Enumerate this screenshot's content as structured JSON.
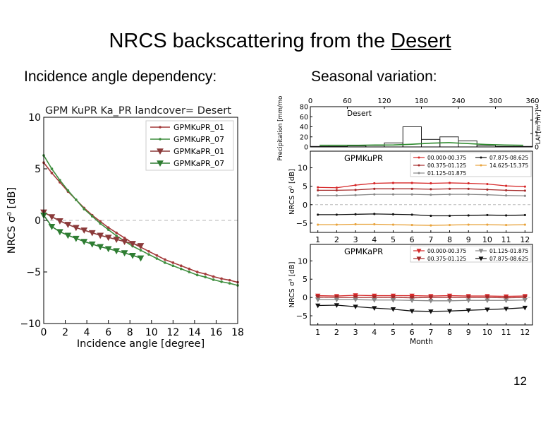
{
  "slide": {
    "title_prefix": "NRCS backscattering from the ",
    "title_underlined": "Desert",
    "left_heading": "Incidence angle dependency:",
    "right_heading": "Seasonal variation:",
    "page_number": "12"
  },
  "chart_data": [
    {
      "id": "incidence",
      "type": "line",
      "title": "GPM KuPR Ka_PR  landcover= Desert",
      "xlabel": "Incidence angle [degree]",
      "ylabel": "NRCS σ⁰ [dB]",
      "xlim": [
        0,
        18
      ],
      "ylim": [
        -10,
        10
      ],
      "xticks": [
        0,
        2,
        4,
        6,
        8,
        10,
        12,
        14,
        16,
        18
      ],
      "yticks": [
        -10,
        -5,
        0,
        5,
        10
      ],
      "xtick_labels": [
        "0",
        "2",
        "4",
        "6",
        "8",
        "10",
        "12",
        "14",
        "16",
        "18"
      ],
      "ytick_labels": [
        "−10",
        "−5",
        "0",
        "5",
        "10"
      ],
      "reference_line": 0,
      "legend_position": "upper right",
      "series": [
        {
          "name": "GPMKuPR_01",
          "color": "#a33a3a",
          "marker": "dot",
          "x": [
            0,
            0.75,
            1.5,
            2.25,
            3,
            3.75,
            4.5,
            5.25,
            6,
            6.75,
            7.5,
            8.25,
            9,
            9.75,
            10.5,
            11.25,
            12,
            12.75,
            13.5,
            14.25,
            15,
            15.75,
            16.5,
            17.25,
            18
          ],
          "y": [
            5.6,
            4.6,
            3.7,
            2.8,
            2.0,
            1.2,
            0.5,
            -0.1,
            -0.7,
            -1.2,
            -1.7,
            -2.2,
            -2.6,
            -3.0,
            -3.4,
            -3.8,
            -4.1,
            -4.4,
            -4.7,
            -5.0,
            -5.2,
            -5.45,
            -5.65,
            -5.8,
            -6.0
          ]
        },
        {
          "name": "GPMKuPR_07",
          "color": "#3e8e3e",
          "marker": "dot",
          "x": [
            0,
            0.75,
            1.5,
            2.25,
            3,
            3.75,
            4.5,
            5.25,
            6,
            6.75,
            7.5,
            8.25,
            9,
            9.75,
            10.5,
            11.25,
            12,
            12.75,
            13.5,
            14.25,
            15,
            15.75,
            16.5,
            17.25,
            18
          ],
          "y": [
            6.3,
            5.0,
            3.9,
            2.9,
            2.0,
            1.1,
            0.4,
            -0.3,
            -0.9,
            -1.5,
            -2.0,
            -2.5,
            -2.9,
            -3.3,
            -3.7,
            -4.1,
            -4.4,
            -4.7,
            -5.0,
            -5.3,
            -5.5,
            -5.75,
            -5.95,
            -6.1,
            -6.3
          ]
        },
        {
          "name": "GPMKaPR_01",
          "color": "#8b3a3a",
          "marker": "triangle",
          "x": [
            0,
            0.75,
            1.5,
            2.25,
            3,
            3.75,
            4.5,
            5.25,
            6,
            6.75,
            7.5,
            8.25,
            9
          ],
          "y": [
            0.8,
            0.35,
            -0.05,
            -0.4,
            -0.7,
            -0.95,
            -1.2,
            -1.45,
            -1.65,
            -1.85,
            -2.05,
            -2.25,
            -2.45
          ]
        },
        {
          "name": "GPMKaPR_07",
          "color": "#2e7d32",
          "marker": "triangle",
          "x": [
            0,
            0.75,
            1.5,
            2.25,
            3,
            3.75,
            4.5,
            5.25,
            6,
            6.75,
            7.5,
            8.25,
            9
          ],
          "y": [
            0.5,
            -0.6,
            -1.1,
            -1.45,
            -1.75,
            -2.05,
            -2.3,
            -2.55,
            -2.75,
            -2.95,
            -3.15,
            -3.4,
            -3.65
          ]
        }
      ]
    },
    {
      "id": "precip",
      "type": "bar",
      "title": "Desert",
      "xlabel": "",
      "ylabel": "Precipitation [mm/mo]",
      "ylabel_right": "LAI [m²/m²]",
      "top_xticks": [
        0,
        60,
        120,
        180,
        240,
        300,
        360
      ],
      "top_xtick_labels": [
        "0",
        "60",
        "120",
        "180",
        "240",
        "300",
        "360"
      ],
      "ylim": [
        0,
        80
      ],
      "yticks": [
        0,
        20,
        40,
        60,
        80
      ],
      "ytick_labels": [
        "0",
        "20",
        "40",
        "60",
        "80"
      ],
      "ylim_right": [
        0,
        3
      ],
      "yticks_right": [
        0,
        1,
        2,
        3
      ],
      "ytick_labels_right": [
        "0",
        "1",
        "2",
        "3"
      ],
      "months": [
        1,
        2,
        3,
        4,
        5,
        6,
        7,
        8,
        9,
        10,
        11,
        12
      ],
      "values": [
        1,
        1,
        2,
        3,
        8,
        40,
        15,
        20,
        12,
        3,
        1,
        1
      ],
      "lai": [
        0.12,
        0.12,
        0.12,
        0.14,
        0.15,
        0.2,
        0.28,
        0.32,
        0.25,
        0.18,
        0.14,
        0.12
      ]
    },
    {
      "id": "ku_seasonal",
      "type": "line",
      "title": "GPMKuPR",
      "xlabel": "",
      "ylabel": "NRCS σ⁰ [dB]",
      "xlim": [
        0.6,
        12.4
      ],
      "ylim": [
        -7.5,
        14.5
      ],
      "yticks": [
        -5,
        0,
        5,
        10
      ],
      "ytick_labels": [
        "−5",
        "0",
        "5",
        "10"
      ],
      "xticks": [
        1,
        2,
        3,
        4,
        5,
        6,
        7,
        8,
        9,
        10,
        11,
        12
      ],
      "xtick_labels": [
        "1",
        "2",
        "3",
        "4",
        "5",
        "6",
        "7",
        "8",
        "9",
        "10",
        "11",
        "12"
      ],
      "reference_line": 0,
      "series": [
        {
          "name": "00.000-00.375",
          "color": "#d62728",
          "marker": "dot",
          "x": [
            1,
            2,
            3,
            4,
            5,
            6,
            7,
            8,
            9,
            10,
            11,
            12
          ],
          "y": [
            4.7,
            4.6,
            5.3,
            5.8,
            5.9,
            5.9,
            5.8,
            5.9,
            5.8,
            5.6,
            5.1,
            4.9
          ]
        },
        {
          "name": "00.375-01.125",
          "color": "#a52a2a",
          "marker": "dot",
          "x": [
            1,
            2,
            3,
            4,
            5,
            6,
            7,
            8,
            9,
            10,
            11,
            12
          ],
          "y": [
            3.9,
            3.9,
            4.0,
            4.3,
            4.3,
            4.3,
            4.2,
            4.3,
            4.3,
            4.1,
            3.9,
            3.8
          ]
        },
        {
          "name": "01.125-01.875",
          "color": "#888888",
          "marker": "dot",
          "x": [
            1,
            2,
            3,
            4,
            5,
            6,
            7,
            8,
            9,
            10,
            11,
            12
          ],
          "y": [
            2.5,
            2.5,
            2.6,
            2.8,
            2.8,
            2.8,
            2.7,
            2.8,
            2.8,
            2.7,
            2.5,
            2.4
          ]
        },
        {
          "name": "07.875-08.625",
          "color": "#111111",
          "marker": "dot",
          "x": [
            1,
            2,
            3,
            4,
            5,
            6,
            7,
            8,
            9,
            10,
            11,
            12
          ],
          "y": [
            -2.7,
            -2.7,
            -2.6,
            -2.5,
            -2.6,
            -2.7,
            -3.0,
            -3.0,
            -2.9,
            -2.8,
            -2.9,
            -2.8
          ]
        },
        {
          "name": "14.625-15.375",
          "color": "#e8a33c",
          "marker": "dot",
          "x": [
            1,
            2,
            3,
            4,
            5,
            6,
            7,
            8,
            9,
            10,
            11,
            12
          ],
          "y": [
            -5.4,
            -5.4,
            -5.3,
            -5.3,
            -5.4,
            -5.5,
            -5.6,
            -5.5,
            -5.4,
            -5.4,
            -5.5,
            -5.4
          ]
        }
      ]
    },
    {
      "id": "ka_seasonal",
      "type": "line",
      "title": "GPMKaPR",
      "xlabel": "Month",
      "ylabel": "NRCS σ⁰ [dB]",
      "xlim": [
        0.6,
        12.4
      ],
      "ylim": [
        -7.5,
        14.5
      ],
      "yticks": [
        -5,
        0,
        5,
        10
      ],
      "ytick_labels": [
        "−5",
        "0",
        "5",
        "10"
      ],
      "xticks": [
        1,
        2,
        3,
        4,
        5,
        6,
        7,
        8,
        9,
        10,
        11,
        12
      ],
      "xtick_labels": [
        "1",
        "2",
        "3",
        "4",
        "5",
        "6",
        "7",
        "8",
        "9",
        "10",
        "11",
        "12"
      ],
      "reference_line": 0,
      "series": [
        {
          "name": "00.000-00.375",
          "color": "#d62728",
          "marker": "triangle",
          "x": [
            1,
            2,
            3,
            4,
            5,
            6,
            7,
            8,
            9,
            10,
            11,
            12
          ],
          "y": [
            0.5,
            0.4,
            0.6,
            0.5,
            0.5,
            0.5,
            0.4,
            0.5,
            0.4,
            0.4,
            0.3,
            0.4
          ]
        },
        {
          "name": "00.375-01.125",
          "color": "#a52a2a",
          "marker": "triangle",
          "x": [
            1,
            2,
            3,
            4,
            5,
            6,
            7,
            8,
            9,
            10,
            11,
            12
          ],
          "y": [
            0.1,
            0.0,
            0.0,
            0.0,
            0.0,
            -0.1,
            0.0,
            0.0,
            0.0,
            0.0,
            -0.1,
            0.0
          ]
        },
        {
          "name": "01.125-01.875",
          "color": "#888888",
          "marker": "triangle",
          "x": [
            1,
            2,
            3,
            4,
            5,
            6,
            7,
            8,
            9,
            10,
            11,
            12
          ],
          "y": [
            -0.6,
            -0.6,
            -0.6,
            -0.7,
            -0.7,
            -0.8,
            -0.9,
            -0.9,
            -0.8,
            -0.8,
            -0.8,
            -0.7
          ]
        },
        {
          "name": "07.875-08.625",
          "color": "#111111",
          "marker": "triangle",
          "x": [
            1,
            2,
            3,
            4,
            5,
            6,
            7,
            8,
            9,
            10,
            11,
            12
          ],
          "y": [
            -2.2,
            -2.1,
            -2.5,
            -2.9,
            -3.2,
            -3.7,
            -3.8,
            -3.7,
            -3.5,
            -3.3,
            -3.1,
            -2.8
          ]
        }
      ]
    }
  ]
}
